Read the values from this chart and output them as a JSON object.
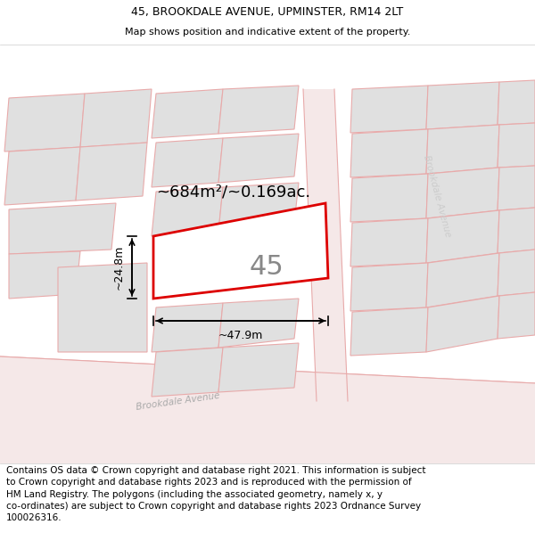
{
  "title": "45, BROOKDALE AVENUE, UPMINSTER, RM14 2LT",
  "subtitle": "Map shows position and indicative extent of the property.",
  "footer_line1": "Contains OS data © Crown copyright and database right 2021. This information is subject",
  "footer_line2": "to Crown copyright and database rights 2023 and is reproduced with the permission of",
  "footer_line3": "HM Land Registry. The polygons (including the associated geometry, namely x, y",
  "footer_line4": "co-ordinates) are subject to Crown copyright and database rights 2023 Ordnance Survey",
  "footer_line5": "100026316.",
  "area_text": "~684m²/~0.169ac.",
  "width_text": "~47.9m",
  "height_text": "~24.8m",
  "plot_number": "45",
  "map_bg": "#ffffff",
  "plot_fill": "#ffffff",
  "plot_edge": "#dd0000",
  "plot_edge_lw": 2.0,
  "road_fill": "#f5e8e8",
  "road_edge": "#e8aaaa",
  "other_fill": "#e0e0e0",
  "other_edge": "#e8aaaa",
  "other_edge_lw": 0.8,
  "title_fontsize": 9,
  "subtitle_fontsize": 8,
  "footer_fontsize": 7.5,
  "area_fontsize": 13,
  "dim_fontsize": 9,
  "number_fontsize": 22
}
